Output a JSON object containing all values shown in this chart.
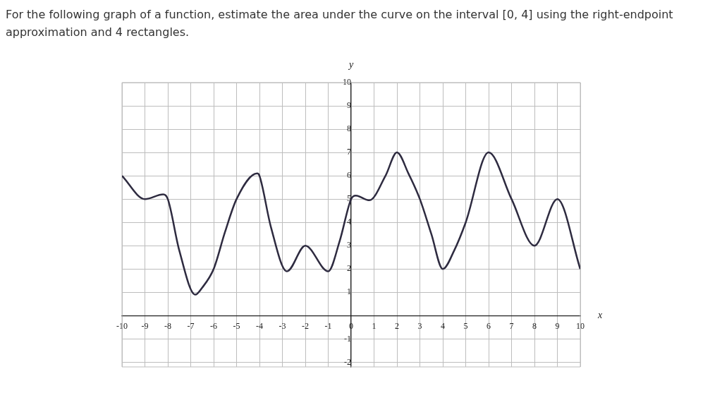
{
  "chart_data": {
    "type": "line",
    "title": "For the following graph of a function, estimate the area under the curve on the interval [0, 4] using the right-endpoint approximation and 4 rectangles.",
    "xlabel": "x",
    "ylabel": "y",
    "series": [
      {
        "color": "#2e2b40",
        "x": [
          -10,
          -9,
          -8.2,
          -8,
          -7.5,
          -6.8,
          -6.5,
          -6,
          -5.5,
          -5,
          -4.1,
          -4,
          -3.5,
          -2.8,
          -2,
          -1,
          -0.5,
          0,
          0.2,
          0.8,
          1.5,
          2,
          2.5,
          3,
          3.5,
          4,
          4.5,
          5,
          6,
          7,
          8,
          9,
          10
        ],
        "values": [
          6,
          5,
          5.2,
          5,
          2.8,
          0.9,
          1.2,
          2,
          3.6,
          5,
          6.1,
          6,
          3.8,
          1.9,
          3,
          1.9,
          3.2,
          5,
          5.15,
          4.95,
          6,
          7,
          6.1,
          5,
          3.5,
          2,
          2.8,
          4,
          7,
          5,
          3,
          5,
          2
        ]
      }
    ],
    "xlim": [
      -10,
      10
    ],
    "ylim": [
      -2.2,
      10
    ],
    "xticks": [
      -10,
      -9,
      -8,
      -7,
      -6,
      -5,
      -4,
      -3,
      -2,
      -1,
      0,
      1,
      2,
      3,
      4,
      5,
      6,
      7,
      8,
      9,
      10
    ],
    "yticks": [
      -2,
      -1,
      {
        "value": 0,
        "label": null
      },
      1,
      2,
      3,
      4,
      5,
      6,
      7,
      8,
      9,
      10
    ],
    "grid": true,
    "legend": false,
    "marker": "none",
    "line_style": "solid"
  }
}
